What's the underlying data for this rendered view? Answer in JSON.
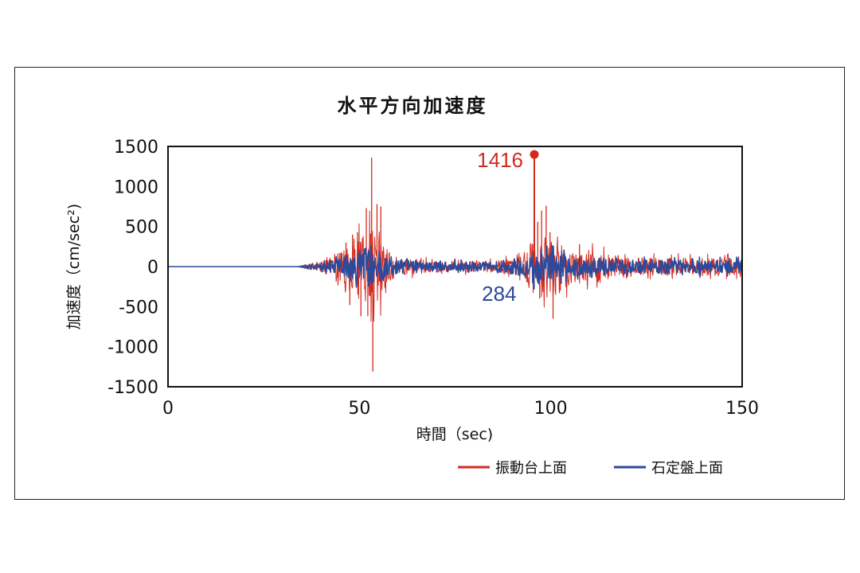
{
  "chart_data": {
    "type": "line",
    "title": "水平方向加速度",
    "xlabel": "時間（sec)",
    "ylabel": "加速度（cm/sec²)",
    "xlim": [
      0,
      150
    ],
    "ylim": [
      -1500,
      1500
    ],
    "xticks": [
      0,
      50,
      100,
      150
    ],
    "yticks": [
      1500,
      1000,
      500,
      0,
      -500,
      -1000,
      -1500
    ],
    "grid": "horizontal dashed",
    "legend_position": "bottom-right",
    "series": [
      {
        "name": "振動台上面",
        "color": "#d42a1e",
        "envelope_points": [
          {
            "t": 0,
            "amp": 0
          },
          {
            "t": 34,
            "amp": 0
          },
          {
            "t": 36,
            "amp": 30
          },
          {
            "t": 40,
            "amp": 70
          },
          {
            "t": 44,
            "amp": 140
          },
          {
            "t": 47,
            "amp": 320
          },
          {
            "t": 50,
            "amp": 380
          },
          {
            "t": 52,
            "amp": 520
          },
          {
            "t": 55,
            "amp": 480
          },
          {
            "t": 57,
            "amp": 250
          },
          {
            "t": 60,
            "amp": 110
          },
          {
            "t": 70,
            "amp": 70
          },
          {
            "t": 85,
            "amp": 70
          },
          {
            "t": 92,
            "amp": 120
          },
          {
            "t": 95,
            "amp": 320
          },
          {
            "t": 98,
            "amp": 420
          },
          {
            "t": 101,
            "amp": 380
          },
          {
            "t": 105,
            "amp": 240
          },
          {
            "t": 110,
            "amp": 200
          },
          {
            "t": 118,
            "amp": 140
          },
          {
            "t": 125,
            "amp": 110
          },
          {
            "t": 150,
            "amp": 110
          }
        ],
        "spikes": [
          {
            "t": 53.2,
            "v": 1360
          },
          {
            "t": 53.5,
            "v": -1310
          },
          {
            "t": 54.6,
            "v": 780
          },
          {
            "t": 51.8,
            "v": 730
          },
          {
            "t": 55.6,
            "v": 750
          },
          {
            "t": 52.2,
            "v": -620
          },
          {
            "t": 49.5,
            "v": 430
          },
          {
            "t": 48.2,
            "v": 400
          },
          {
            "t": 50.4,
            "v": -620
          },
          {
            "t": 47.5,
            "v": -480
          },
          {
            "t": 46.5,
            "v": 300
          },
          {
            "t": 95.7,
            "v": 1380
          },
          {
            "t": 97.6,
            "v": 700
          },
          {
            "t": 98.8,
            "v": 760
          },
          {
            "t": 96.6,
            "v": 560
          },
          {
            "t": 99.8,
            "v": 430
          },
          {
            "t": 100.6,
            "v": -650
          },
          {
            "t": 97.1,
            "v": -400
          },
          {
            "t": 102.5,
            "v": -300
          },
          {
            "t": 107.5,
            "v": 280
          }
        ],
        "peak": {
          "t": 95.7,
          "v": 1416,
          "label": "1416"
        }
      },
      {
        "name": "石定盤上面",
        "color": "#2b4a9b",
        "envelope_points": [
          {
            "t": 0,
            "amp": 0
          },
          {
            "t": 34,
            "amp": 0
          },
          {
            "t": 36,
            "amp": 20
          },
          {
            "t": 40,
            "amp": 50
          },
          {
            "t": 44,
            "amp": 90
          },
          {
            "t": 47,
            "amp": 160
          },
          {
            "t": 50,
            "amp": 200
          },
          {
            "t": 52,
            "amp": 240
          },
          {
            "t": 55,
            "amp": 200
          },
          {
            "t": 58,
            "amp": 110
          },
          {
            "t": 65,
            "amp": 60
          },
          {
            "t": 85,
            "amp": 60
          },
          {
            "t": 92,
            "amp": 110
          },
          {
            "t": 96,
            "amp": 200
          },
          {
            "t": 100,
            "amp": 180
          },
          {
            "t": 105,
            "amp": 120
          },
          {
            "t": 115,
            "amp": 90
          },
          {
            "t": 150,
            "amp": 80
          }
        ],
        "spikes": [
          {
            "t": 95.6,
            "v": -284
          },
          {
            "t": 53.0,
            "v": 260
          },
          {
            "t": 52.4,
            "v": -250
          },
          {
            "t": 97.5,
            "v": 220
          }
        ],
        "peak": {
          "t": 95.6,
          "v": -284,
          "label": "284"
        }
      }
    ]
  }
}
